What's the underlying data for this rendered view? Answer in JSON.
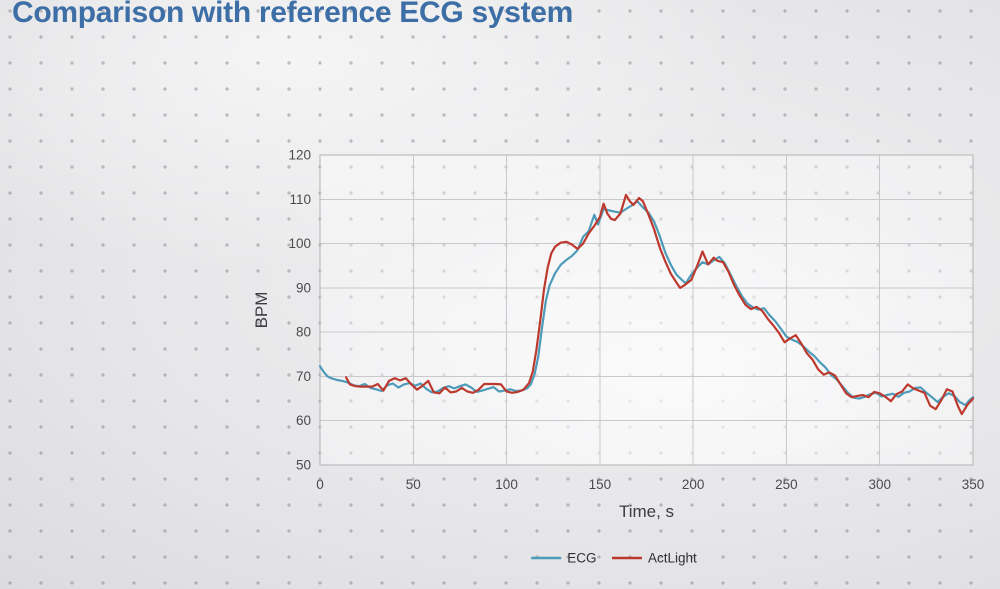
{
  "title": "Comparison with reference ECG system",
  "colors": {
    "title_text": "#3d6fa6",
    "ecg_line": "#4d9bb9",
    "actlight_line": "#bd392e",
    "gridline": "#c9c9cc",
    "tick_text": "#4b4b4d",
    "background": "#e7e7e9"
  },
  "chart_data": {
    "type": "line",
    "title": "",
    "xlabel": "Time, s",
    "ylabel": "BPM",
    "xlim": [
      0,
      350
    ],
    "ylim": [
      50,
      120
    ],
    "x_ticks": [
      0,
      50,
      100,
      150,
      200,
      250,
      300,
      350
    ],
    "y_ticks": [
      50,
      60,
      70,
      80,
      90,
      100,
      110,
      120
    ],
    "grid": true,
    "legend_position": "bottom-center",
    "series": [
      {
        "name": "ECG",
        "color": "#4d9bb9",
        "points": [
          [
            0,
            72.3
          ],
          [
            2,
            71
          ],
          [
            4,
            70
          ],
          [
            6,
            69.6
          ],
          [
            9,
            69.2
          ],
          [
            12,
            69
          ],
          [
            15,
            68.6
          ],
          [
            18,
            68
          ],
          [
            21,
            67.8
          ],
          [
            24,
            68.3
          ],
          [
            27,
            67.4
          ],
          [
            30,
            67.1
          ],
          [
            33,
            66.7
          ],
          [
            36,
            68
          ],
          [
            39,
            68.4
          ],
          [
            42,
            67.5
          ],
          [
            45,
            68.2
          ],
          [
            48,
            68.5
          ],
          [
            51,
            67.9
          ],
          [
            54,
            68.4
          ],
          [
            57,
            67.2
          ],
          [
            60,
            66.4
          ],
          [
            63,
            66.6
          ],
          [
            66,
            67.4
          ],
          [
            69,
            67.8
          ],
          [
            72,
            67.3
          ],
          [
            75,
            67.8
          ],
          [
            78,
            68.2
          ],
          [
            81,
            67.5
          ],
          [
            84,
            66.5
          ],
          [
            87,
            66.8
          ],
          [
            90,
            67.2
          ],
          [
            93,
            67.6
          ],
          [
            96,
            66.6
          ],
          [
            99,
            66.8
          ],
          [
            102,
            67.1
          ],
          [
            105,
            66.7
          ],
          [
            108,
            66.8
          ],
          [
            111,
            67.3
          ],
          [
            113,
            68.2
          ],
          [
            115,
            70.5
          ],
          [
            117,
            74.5
          ],
          [
            119,
            81
          ],
          [
            121,
            87
          ],
          [
            123,
            90.5
          ],
          [
            126,
            93.3
          ],
          [
            129,
            95.2
          ],
          [
            132,
            96.3
          ],
          [
            135,
            97.2
          ],
          [
            138,
            98.5
          ],
          [
            141,
            101.5
          ],
          [
            144,
            102.8
          ],
          [
            147,
            106.5
          ],
          [
            149,
            104.3
          ],
          [
            152,
            107.8
          ],
          [
            155,
            107.5
          ],
          [
            158,
            107.2
          ],
          [
            161,
            107
          ],
          [
            164,
            107.8
          ],
          [
            167,
            108.6
          ],
          [
            170,
            109.6
          ],
          [
            173,
            108.2
          ],
          [
            176,
            107
          ],
          [
            179,
            105
          ],
          [
            182,
            101.8
          ],
          [
            185,
            98
          ],
          [
            188,
            95.2
          ],
          [
            191,
            93
          ],
          [
            194,
            91.8
          ],
          [
            196,
            91
          ],
          [
            199,
            93
          ],
          [
            202,
            94.5
          ],
          [
            205,
            95.8
          ],
          [
            208,
            95.3
          ],
          [
            211,
            96.2
          ],
          [
            214,
            97
          ],
          [
            217,
            95.5
          ],
          [
            220,
            93
          ],
          [
            223,
            90.5
          ],
          [
            226,
            88.2
          ],
          [
            229,
            86.5
          ],
          [
            232,
            85.6
          ],
          [
            235,
            85.1
          ],
          [
            238,
            85.4
          ],
          [
            241,
            83.8
          ],
          [
            244,
            82.5
          ],
          [
            247,
            80.8
          ],
          [
            250,
            79
          ],
          [
            253,
            78.3
          ],
          [
            256,
            77.8
          ],
          [
            259,
            76.8
          ],
          [
            262,
            75.6
          ],
          [
            265,
            74.6
          ],
          [
            268,
            73.2
          ],
          [
            271,
            72
          ],
          [
            274,
            70.3
          ],
          [
            277,
            69.3
          ],
          [
            280,
            67.8
          ],
          [
            283,
            66.3
          ],
          [
            286,
            65.2
          ],
          [
            289,
            65
          ],
          [
            292,
            65.4
          ],
          [
            295,
            66
          ],
          [
            298,
            66.3
          ],
          [
            301,
            65.5
          ],
          [
            304,
            65.8
          ],
          [
            307,
            66.1
          ],
          [
            310,
            65.4
          ],
          [
            313,
            66.3
          ],
          [
            316,
            66.6
          ],
          [
            319,
            67.4
          ],
          [
            322,
            67.5
          ],
          [
            325,
            66.3
          ],
          [
            328,
            65.3
          ],
          [
            331,
            64.2
          ],
          [
            334,
            65.4
          ],
          [
            337,
            66.2
          ],
          [
            340,
            65.6
          ],
          [
            343,
            64.2
          ],
          [
            346,
            63.5
          ],
          [
            348,
            64.6
          ],
          [
            350,
            65.3
          ]
        ]
      },
      {
        "name": "ActLight",
        "color": "#bd392e",
        "points": [
          [
            14,
            69.8
          ],
          [
            16,
            68.2
          ],
          [
            19,
            67.8
          ],
          [
            22,
            67.7
          ],
          [
            25,
            67.7
          ],
          [
            28,
            67.7
          ],
          [
            31,
            68.3
          ],
          [
            34,
            66.8
          ],
          [
            37,
            69
          ],
          [
            40,
            69.6
          ],
          [
            43,
            69.1
          ],
          [
            46,
            69.6
          ],
          [
            49,
            68.2
          ],
          [
            52,
            67
          ],
          [
            55,
            67.9
          ],
          [
            58,
            69
          ],
          [
            61,
            66.4
          ],
          [
            64,
            66.2
          ],
          [
            67,
            67.5
          ],
          [
            70,
            66.4
          ],
          [
            73,
            66.6
          ],
          [
            76,
            67.4
          ],
          [
            79,
            66.6
          ],
          [
            82,
            66.3
          ],
          [
            85,
            67
          ],
          [
            88,
            68.3
          ],
          [
            91,
            68.3
          ],
          [
            94,
            68.3
          ],
          [
            97,
            68.2
          ],
          [
            100,
            66.6
          ],
          [
            103,
            66.3
          ],
          [
            106,
            66.5
          ],
          [
            109,
            67
          ],
          [
            112,
            68.5
          ],
          [
            114,
            71
          ],
          [
            116,
            76
          ],
          [
            118,
            82.5
          ],
          [
            120,
            89.5
          ],
          [
            122,
            94.5
          ],
          [
            124,
            97.8
          ],
          [
            126,
            99.3
          ],
          [
            129,
            100.2
          ],
          [
            132,
            100.4
          ],
          [
            135,
            99.8
          ],
          [
            138,
            98.8
          ],
          [
            141,
            100
          ],
          [
            144,
            102.3
          ],
          [
            147,
            104
          ],
          [
            150,
            106
          ],
          [
            152,
            109
          ],
          [
            154,
            106.8
          ],
          [
            156,
            105.6
          ],
          [
            158,
            105.3
          ],
          [
            161,
            106.8
          ],
          [
            164,
            111
          ],
          [
            166,
            109.6
          ],
          [
            168,
            108.7
          ],
          [
            171,
            110.3
          ],
          [
            173,
            109.6
          ],
          [
            176,
            106.6
          ],
          [
            179,
            103.3
          ],
          [
            182,
            99.2
          ],
          [
            185,
            96
          ],
          [
            188,
            93.2
          ],
          [
            191,
            91.2
          ],
          [
            193,
            90
          ],
          [
            196,
            90.8
          ],
          [
            199,
            91.8
          ],
          [
            202,
            94.8
          ],
          [
            205,
            98.2
          ],
          [
            208,
            95.3
          ],
          [
            211,
            96.8
          ],
          [
            213,
            96.1
          ],
          [
            216,
            95.8
          ],
          [
            219,
            93.6
          ],
          [
            222,
            90.6
          ],
          [
            225,
            88.2
          ],
          [
            228,
            86.2
          ],
          [
            231,
            85.2
          ],
          [
            234,
            85.7
          ],
          [
            237,
            84.8
          ],
          [
            240,
            83
          ],
          [
            243,
            81.5
          ],
          [
            246,
            79.8
          ],
          [
            249,
            77.7
          ],
          [
            252,
            78.6
          ],
          [
            255,
            79.3
          ],
          [
            258,
            77.4
          ],
          [
            261,
            75.2
          ],
          [
            264,
            73.8
          ],
          [
            267,
            71.6
          ],
          [
            270,
            70.4
          ],
          [
            273,
            70.9
          ],
          [
            276,
            70.2
          ],
          [
            279,
            68.2
          ],
          [
            282,
            66.2
          ],
          [
            285,
            65.3
          ],
          [
            288,
            65.6
          ],
          [
            291,
            65.8
          ],
          [
            294,
            65.3
          ],
          [
            297,
            66.5
          ],
          [
            300,
            66.2
          ],
          [
            303,
            65.4
          ],
          [
            306,
            64.4
          ],
          [
            309,
            66
          ],
          [
            312,
            66.6
          ],
          [
            315,
            68.2
          ],
          [
            318,
            67.3
          ],
          [
            321,
            66.8
          ],
          [
            324,
            66.3
          ],
          [
            327,
            63.4
          ],
          [
            330,
            62.6
          ],
          [
            333,
            64.6
          ],
          [
            336,
            67.1
          ],
          [
            339,
            66.6
          ],
          [
            342,
            63.2
          ],
          [
            344,
            61.5
          ],
          [
            347,
            63.6
          ],
          [
            350,
            65
          ]
        ]
      }
    ]
  }
}
